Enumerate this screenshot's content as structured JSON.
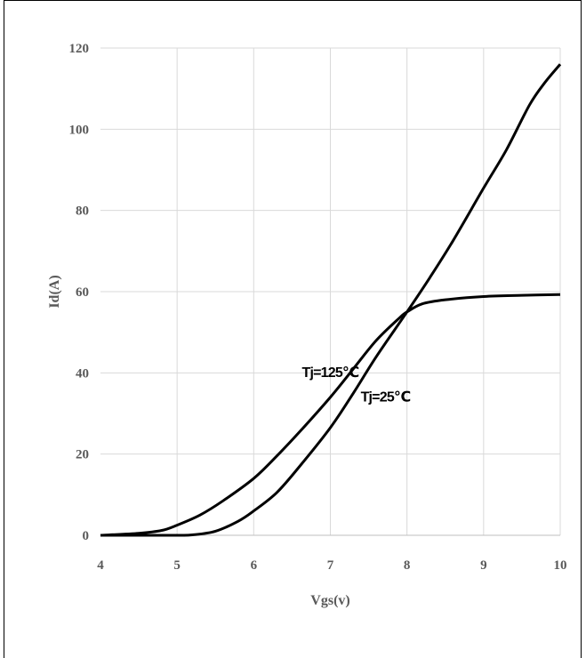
{
  "chart_data": {
    "type": "line",
    "xlabel": "Vgs(v)",
    "ylabel": "Id(A)",
    "xlim": [
      4,
      10
    ],
    "ylim": [
      0,
      120
    ],
    "x_ticks": [
      "4",
      "5",
      "6",
      "7",
      "8",
      "9",
      "10"
    ],
    "y_ticks": [
      "0",
      "20",
      "40",
      "60",
      "80",
      "100",
      "120"
    ],
    "grid": true,
    "legend": "none",
    "series": [
      {
        "name": "Tj=125℃",
        "points": [
          [
            4.0,
            0.0
          ],
          [
            4.5,
            0.5
          ],
          [
            4.8,
            1.2
          ],
          [
            5.0,
            2.5
          ],
          [
            5.3,
            5.0
          ],
          [
            5.6,
            8.5
          ],
          [
            6.0,
            14.0
          ],
          [
            6.3,
            19.5
          ],
          [
            6.6,
            25.5
          ],
          [
            7.0,
            34.0
          ],
          [
            7.3,
            41.0
          ],
          [
            7.6,
            48.0
          ],
          [
            7.9,
            53.5
          ],
          [
            8.0,
            55.0
          ],
          [
            8.2,
            57.0
          ],
          [
            8.5,
            58.0
          ],
          [
            9.0,
            58.8
          ],
          [
            9.5,
            59.1
          ],
          [
            10.0,
            59.3
          ]
        ]
      },
      {
        "name": "Tj=25℃",
        "points": [
          [
            4.0,
            0.0
          ],
          [
            4.5,
            0.0
          ],
          [
            5.0,
            0.0
          ],
          [
            5.2,
            0.1
          ],
          [
            5.5,
            1.0
          ],
          [
            5.8,
            3.5
          ],
          [
            6.0,
            6.0
          ],
          [
            6.3,
            10.5
          ],
          [
            6.6,
            17.0
          ],
          [
            7.0,
            26.5
          ],
          [
            7.3,
            35.0
          ],
          [
            7.6,
            44.0
          ],
          [
            8.0,
            55.0
          ],
          [
            8.3,
            63.5
          ],
          [
            8.6,
            72.5
          ],
          [
            9.0,
            85.5
          ],
          [
            9.3,
            95.0
          ],
          [
            9.6,
            106.0
          ],
          [
            9.8,
            111.5
          ],
          [
            10.0,
            116.0
          ]
        ]
      }
    ],
    "annotations": [
      {
        "text": "Tj=125℃",
        "x": 7.0,
        "y": 39
      },
      {
        "text": "Tj=25℃",
        "x": 7.72,
        "y": 33
      }
    ],
    "colors": {
      "line": "#000000",
      "grid": "#d9d9d9",
      "axis": "#bfbfbf",
      "text": "#595959"
    }
  }
}
